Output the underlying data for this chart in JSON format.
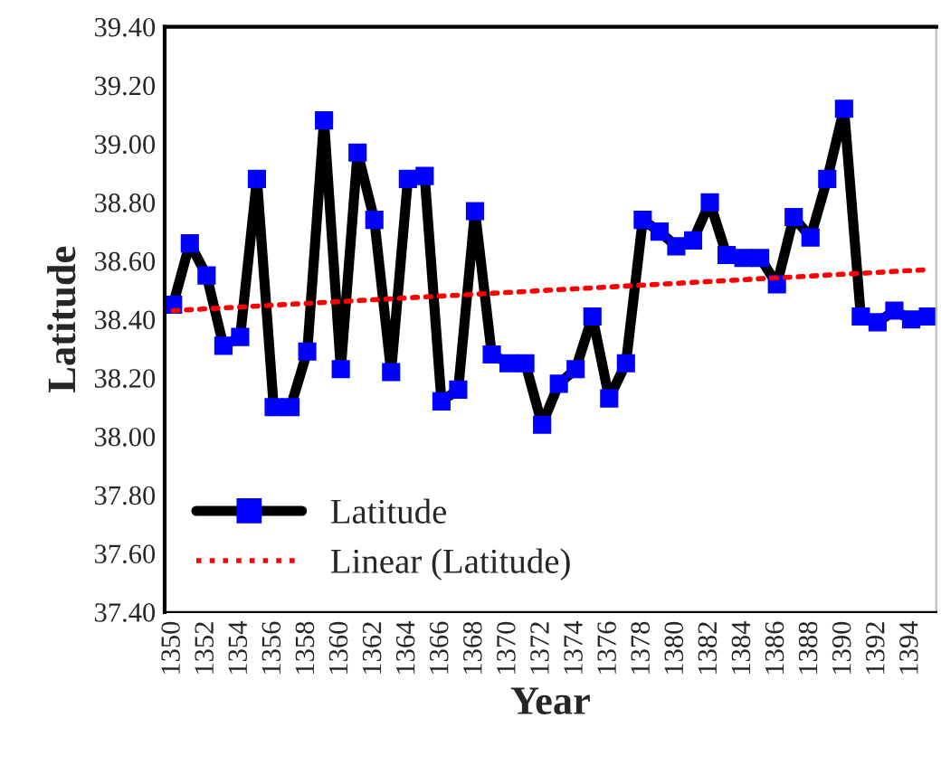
{
  "chart_data": {
    "type": "line",
    "xlabel": "Year",
    "ylabel": "Latitude",
    "xlim": [
      1349.5,
      1395.5
    ],
    "xticks": [
      1350,
      1352,
      1354,
      1356,
      1358,
      1360,
      1362,
      1364,
      1366,
      1368,
      1370,
      1372,
      1374,
      1376,
      1378,
      1380,
      1382,
      1384,
      1386,
      1388,
      1390,
      1392,
      1394
    ],
    "ylim": [
      37.4,
      39.4
    ],
    "yticks": [
      {
        "value": 37.4,
        "label": "37.40"
      },
      {
        "value": 37.6,
        "label": "37.60"
      },
      {
        "value": 37.8,
        "label": "37.80"
      },
      {
        "value": 38.0,
        "label": "38.00"
      },
      {
        "value": 38.2,
        "label": "38.20"
      },
      {
        "value": 38.4,
        "label": "38.40"
      },
      {
        "value": 38.6,
        "label": "38.60"
      },
      {
        "value": 38.8,
        "label": "38.80"
      },
      {
        "value": 39.0,
        "label": "39.00"
      },
      {
        "value": 39.2,
        "label": "39.20"
      },
      {
        "value": 39.4,
        "label": "39.40"
      }
    ],
    "grid": false,
    "legend": "bottom left",
    "series": [
      {
        "name": "Latitude",
        "color": "#0000ff",
        "marker": "square",
        "line_style": "solid",
        "x": [
          1350,
          1351,
          1352,
          1353,
          1354,
          1355,
          1356,
          1357,
          1358,
          1359,
          1360,
          1361,
          1362,
          1363,
          1364,
          1365,
          1366,
          1367,
          1368,
          1369,
          1370,
          1371,
          1372,
          1373,
          1374,
          1375,
          1376,
          1377,
          1378,
          1379,
          1380,
          1381,
          1382,
          1383,
          1384,
          1385,
          1386,
          1387,
          1388,
          1389,
          1390,
          1391,
          1392,
          1393,
          1394,
          1395
        ],
        "values": [
          38.45,
          38.66,
          38.55,
          38.31,
          38.34,
          38.88,
          38.1,
          38.1,
          38.29,
          39.08,
          38.23,
          38.97,
          38.74,
          38.22,
          38.88,
          38.89,
          38.12,
          38.16,
          38.77,
          38.28,
          38.25,
          38.25,
          38.04,
          38.18,
          38.23,
          38.41,
          38.13,
          38.25,
          38.74,
          38.7,
          38.65,
          38.67,
          38.8,
          38.62,
          38.61,
          38.61,
          38.52,
          38.75,
          38.68,
          38.88,
          39.12,
          38.41,
          38.39,
          38.43,
          38.4,
          38.41
        ]
      },
      {
        "name": "Linear (Latitude)",
        "color": "#ff0000",
        "marker": "none",
        "line_style": "dotted",
        "x": [
          1350,
          1395
        ],
        "values": [
          38.43,
          38.57
        ]
      }
    ]
  }
}
